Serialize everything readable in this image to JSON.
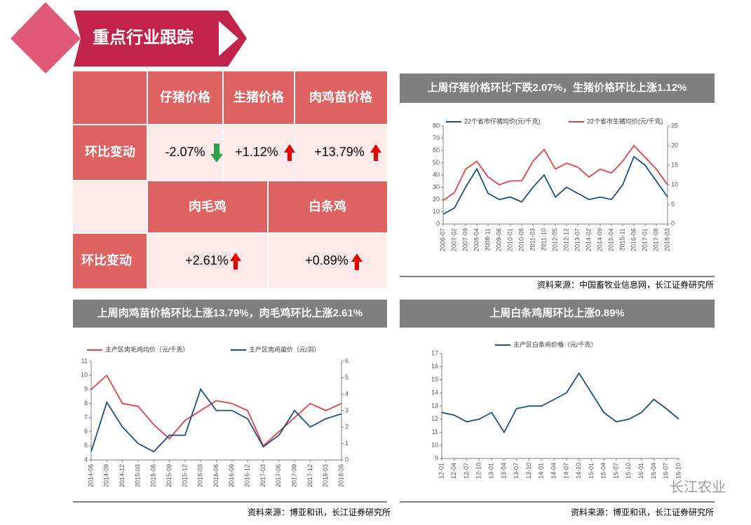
{
  "header": {
    "title": "重点行业跟踪"
  },
  "table": {
    "header": [
      "仔猪价格",
      "生猪价格",
      "肉鸡苗价格"
    ],
    "row1": {
      "label": "环比变动",
      "values": [
        "-2.07%",
        "+1.12%",
        "+13.79%"
      ]
    },
    "header2": [
      "肉毛鸡",
      "白条鸡"
    ],
    "row2": {
      "label": "环比变动",
      "values": [
        "+2.61%",
        "+0.89%"
      ]
    }
  },
  "chart_data": [
    {
      "type": "line",
      "title": "上周仔猪价格环比下跌2.07%，生猪价格环比上涨1.12%",
      "source": "资料来源：中国畜牧业信息网，长江证券研究所",
      "categories": [
        "2006-07",
        "2007-02",
        "2007-09",
        "2008-04",
        "2008-11",
        "2009-06",
        "2010-01",
        "2010-08",
        "2011-03",
        "2011-10",
        "2012-05",
        "2012-12",
        "2013-07",
        "2014-02",
        "2014-09",
        "2015-04",
        "2015-11",
        "2016-06",
        "2017-01",
        "2017-08",
        "2018-03"
      ],
      "series": [
        {
          "name": "22个省市仔猪均价(元/千克)",
          "color": "#1f4e79",
          "values": [
            8,
            13,
            30,
            45,
            25,
            20,
            22,
            18,
            30,
            40,
            22,
            30,
            25,
            20,
            22,
            20,
            32,
            55,
            48,
            35,
            22
          ]
        },
        {
          "name": "22个省市生猪均价(元/千克)",
          "color": "#d9434a",
          "axis": "y2",
          "values": [
            6,
            8,
            14,
            16,
            12,
            10,
            11,
            11,
            16,
            19,
            14,
            15.5,
            14.5,
            12,
            14,
            13,
            16,
            20,
            17,
            14,
            10
          ]
        }
      ],
      "ylim": [
        0,
        80
      ],
      "yticks": [
        0,
        10,
        20,
        30,
        40,
        50,
        60,
        70,
        80
      ],
      "y2lim": [
        0,
        25
      ],
      "y2ticks": [
        0,
        5,
        10,
        15,
        20,
        25
      ]
    },
    {
      "type": "line",
      "title": "上周肉鸡苗价格环比上涨13.79%，肉毛鸡环比上涨2.61%",
      "source": "资料来源：博亚和讯，长江证券研究所",
      "categories": [
        "2014-06",
        "2014-09",
        "2014-12",
        "2015-03",
        "2015-06",
        "2015-09",
        "2015-12",
        "2016-03",
        "2016-06",
        "2016-09",
        "2016-12",
        "2017-03",
        "2017-06",
        "2017-09",
        "2017-12",
        "2018-03",
        "2018-06"
      ],
      "series": [
        {
          "name": "主产区肉毛鸡均价（元/千克）",
          "color": "#d9434a",
          "values": [
            9,
            10,
            8,
            7.8,
            6.5,
            5.5,
            6.8,
            7.5,
            8.2,
            8,
            7.5,
            5,
            6,
            7,
            8,
            7.5,
            8
          ]
        },
        {
          "name": "主产区肉鸡苗价（元/羽）",
          "color": "#1f4e79",
          "axis": "y2",
          "values": [
            0.5,
            3.5,
            2,
            1,
            0.5,
            1.5,
            1.5,
            4.3,
            3,
            3,
            2.5,
            0.8,
            1.5,
            3,
            2,
            2.5,
            2.8
          ]
        }
      ],
      "ylim": [
        4,
        11
      ],
      "yticks": [
        4,
        5,
        6,
        7,
        8,
        9,
        10,
        11
      ],
      "y2lim": [
        0,
        6
      ],
      "y2ticks": [
        0,
        1,
        2,
        3,
        4,
        5,
        6
      ]
    },
    {
      "type": "line",
      "title": "上周白条鸡周环比上涨0.89%",
      "source": "资料来源：博亚和讯，长江证券研究所",
      "categories": [
        "12-01",
        "12-04",
        "12-07",
        "12-10",
        "13-01",
        "13-04",
        "13-07",
        "13-10",
        "14-01",
        "14-04",
        "14-07",
        "14-10",
        "15-01",
        "15-04",
        "15-07",
        "15-10",
        "16-01",
        "16-04",
        "16-07",
        "16-10"
      ],
      "series": [
        {
          "name": "主产区白条鸡价格（元/千克）",
          "color": "#1f4e79",
          "values": [
            12.5,
            12.3,
            11.8,
            12,
            12.5,
            11,
            12.8,
            13,
            13,
            13.5,
            14,
            15.5,
            14,
            12.5,
            11.8,
            12,
            12.5,
            13.5,
            12.8,
            12
          ]
        }
      ],
      "ylim": [
        9,
        17
      ],
      "yticks": [
        9,
        10,
        11,
        12,
        13,
        14,
        15,
        16,
        17
      ]
    }
  ],
  "watermark": "长江农业"
}
